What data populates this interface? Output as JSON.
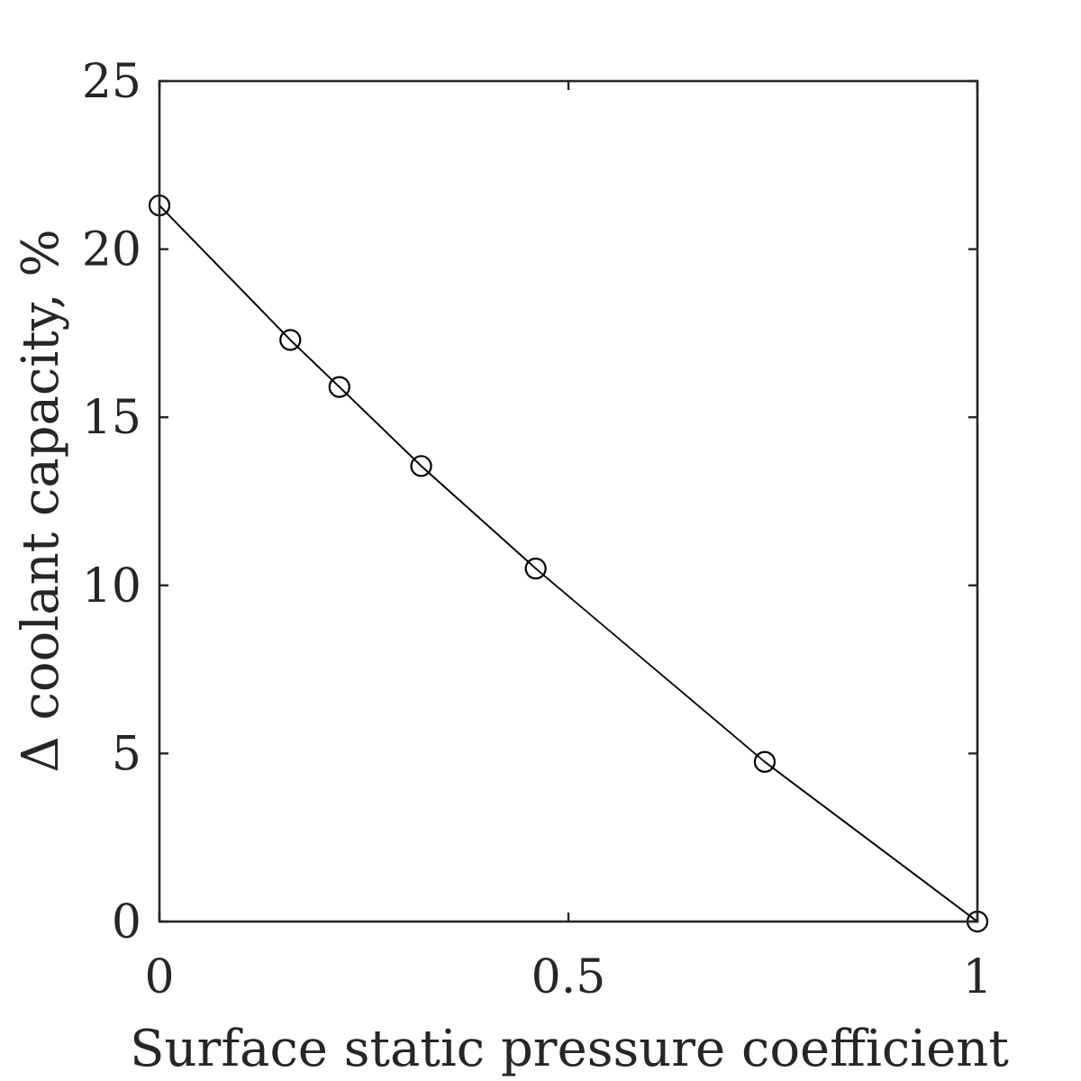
{
  "chart_data": {
    "type": "line",
    "title": "",
    "xlabel": "Surface static pressure coefficient",
    "ylabel": "Δ  coolant capacity, %",
    "xlim": [
      0,
      1
    ],
    "ylim": [
      0,
      25
    ],
    "xticks": [
      0,
      0.5,
      1
    ],
    "xtick_labels": [
      "0",
      "0.5",
      "1"
    ],
    "yticks": [
      0,
      5,
      10,
      15,
      20,
      25
    ],
    "ytick_labels": [
      "0",
      "5",
      "10",
      "15",
      "20",
      "25"
    ],
    "grid": false,
    "series": [
      {
        "marker": "open-circle",
        "color": "#000000",
        "points": [
          {
            "x": 0.0,
            "y": 21.3
          },
          {
            "x": 0.16,
            "y": 17.3
          },
          {
            "x": 0.22,
            "y": 15.9
          },
          {
            "x": 0.32,
            "y": 13.55
          },
          {
            "x": 0.46,
            "y": 10.5
          }
        ]
      },
      {
        "marker": "none",
        "color": "#000000",
        "points": [
          {
            "x": 0.0,
            "y": 21.3
          },
          {
            "x": 0.16,
            "y": 17.3
          },
          {
            "x": 0.22,
            "y": 15.9
          },
          {
            "x": 0.32,
            "y": 13.55
          },
          {
            "x": 0.46,
            "y": 10.5
          },
          {
            "x": 0.74,
            "y": 4.75
          },
          {
            "x": 1.0,
            "y": 0.0
          }
        ]
      },
      {
        "marker": "open-circle",
        "color": "#000000",
        "points": [
          {
            "x": 0.74,
            "y": 4.75
          },
          {
            "x": 1.0,
            "y": 0.0
          }
        ]
      }
    ]
  }
}
